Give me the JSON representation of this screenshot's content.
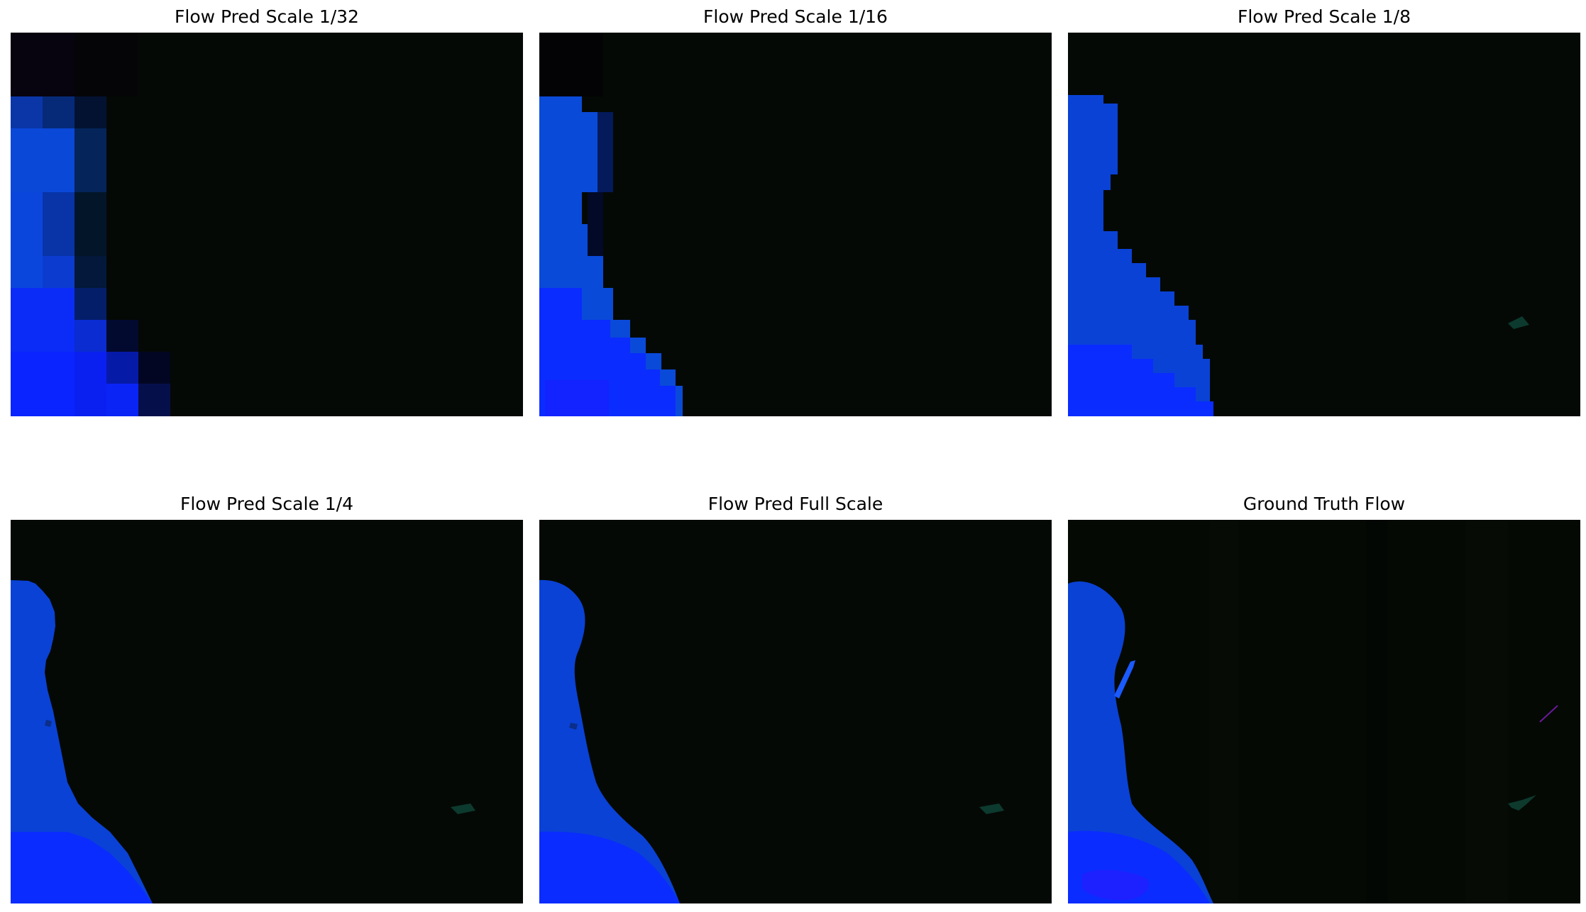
{
  "panels": [
    {
      "title": "Flow Pred Scale 1/32"
    },
    {
      "title": "Flow Pred Scale 1/16"
    },
    {
      "title": "Flow Pred Scale 1/8"
    },
    {
      "title": "Flow Pred Scale 1/4"
    },
    {
      "title": "Flow Pred Full Scale"
    },
    {
      "title": "Ground Truth Flow"
    }
  ],
  "colors": {
    "background": "#040904",
    "flow_blue": "#1a2bff",
    "flow_blue_dark": "#0033c8",
    "teal_blob": "#0e3a2e",
    "magenta_streak": "#6a1a9a"
  }
}
